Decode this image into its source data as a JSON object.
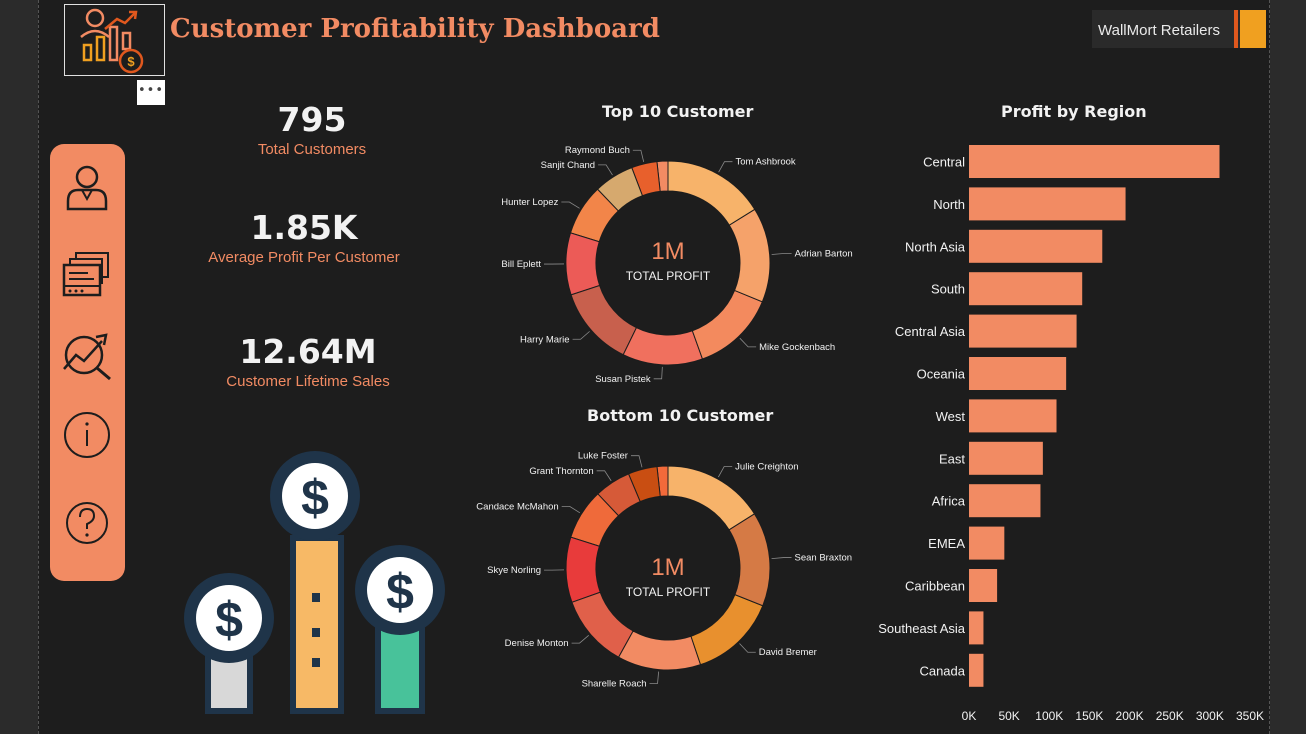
{
  "header": {
    "title": "Customer Profitability Dashboard",
    "brand": "WallMort Retailers",
    "more_label": "•••"
  },
  "sidebar": {
    "items": [
      {
        "icon": "user-icon",
        "label": "Customers"
      },
      {
        "icon": "report-icon",
        "label": "Reports"
      },
      {
        "icon": "trend-analysis-icon",
        "label": "Analysis"
      },
      {
        "icon": "info-icon",
        "label": "Info"
      },
      {
        "icon": "help-icon",
        "label": "Help"
      }
    ]
  },
  "kpis": {
    "total_customers": {
      "value": "795",
      "label": "Total Customers"
    },
    "avg_profit": {
      "value": "1.85K",
      "label": "Average Profit Per Customer"
    },
    "lifetime_sales": {
      "value": "12.64M",
      "label": "Customer Lifetime Sales"
    }
  },
  "colors": {
    "accent": "#f28b63",
    "background": "#1d1d1d",
    "text": "#f2f2f2"
  },
  "chart_data": [
    {
      "type": "pie",
      "title": "Top 10 Customer",
      "center_value": "1M",
      "center_label": "TOTAL PROFIT",
      "slices": [
        {
          "label": "Tom Ashbrook",
          "value": 14.0,
          "color": "#f7b36a"
        },
        {
          "label": "Adrian Barton",
          "value": 13.0,
          "color": "#f5a26a"
        },
        {
          "label": "Mike Gockenbach",
          "value": 11.5,
          "color": "#f38a5e"
        },
        {
          "label": "Susan Pistek",
          "value": 11.0,
          "color": "#f0705e"
        },
        {
          "label": "Harry Marie",
          "value": 11.0,
          "color": "#c8604d"
        },
        {
          "label": "Bill Eplett",
          "value": 8.5,
          "color": "#ec5b57"
        },
        {
          "label": "Hunter Lopez",
          "value": 7.0,
          "color": "#f28549"
        },
        {
          "label": "Sanjit Chand",
          "value": 5.5,
          "color": "#d6a96e"
        },
        {
          "label": "Raymond Buch",
          "value": 3.5,
          "color": "#e8602c"
        },
        {
          "label": "",
          "value": 1.5,
          "color": "#f28b63"
        }
      ]
    },
    {
      "type": "pie",
      "title": "Bottom 10 Customer",
      "center_value": "1M",
      "center_label": "TOTAL PROFIT",
      "slices": [
        {
          "label": "Julie Creighton",
          "value": 14.0,
          "color": "#f7b36a"
        },
        {
          "label": "Sean Braxton",
          "value": 13.0,
          "color": "#d57a45"
        },
        {
          "label": "David Bremer",
          "value": 12.0,
          "color": "#e8902e"
        },
        {
          "label": "Sharelle Roach",
          "value": 11.5,
          "color": "#f28b63"
        },
        {
          "label": "Denise Monton",
          "value": 10.0,
          "color": "#e0604a"
        },
        {
          "label": "Skye Norling",
          "value": 9.0,
          "color": "#e83b3b"
        },
        {
          "label": "Candace McMahon",
          "value": 7.0,
          "color": "#ef6a3a"
        },
        {
          "label": "Grant Thornton",
          "value": 5.0,
          "color": "#d65a38"
        },
        {
          "label": "Luke Foster",
          "value": 4.0,
          "color": "#c94e12"
        },
        {
          "label": "",
          "value": 1.5,
          "color": "#f26a3a"
        }
      ]
    },
    {
      "type": "bar",
      "orientation": "horizontal",
      "title": "Profit by Region",
      "categories": [
        "Central",
        "North",
        "North Asia",
        "South",
        "Central Asia",
        "Oceania",
        "West",
        "East",
        "Africa",
        "EMEA",
        "Caribbean",
        "Southeast Asia",
        "Canada"
      ],
      "values": [
        312000,
        195000,
        166000,
        141000,
        134000,
        121000,
        109000,
        92000,
        89000,
        44000,
        35000,
        18000,
        18000
      ],
      "ticks": [
        "0K",
        "50K",
        "100K",
        "150K",
        "200K",
        "250K",
        "300K",
        "350K"
      ],
      "xlim": [
        0,
        350000
      ],
      "color": "#f28b63"
    }
  ]
}
